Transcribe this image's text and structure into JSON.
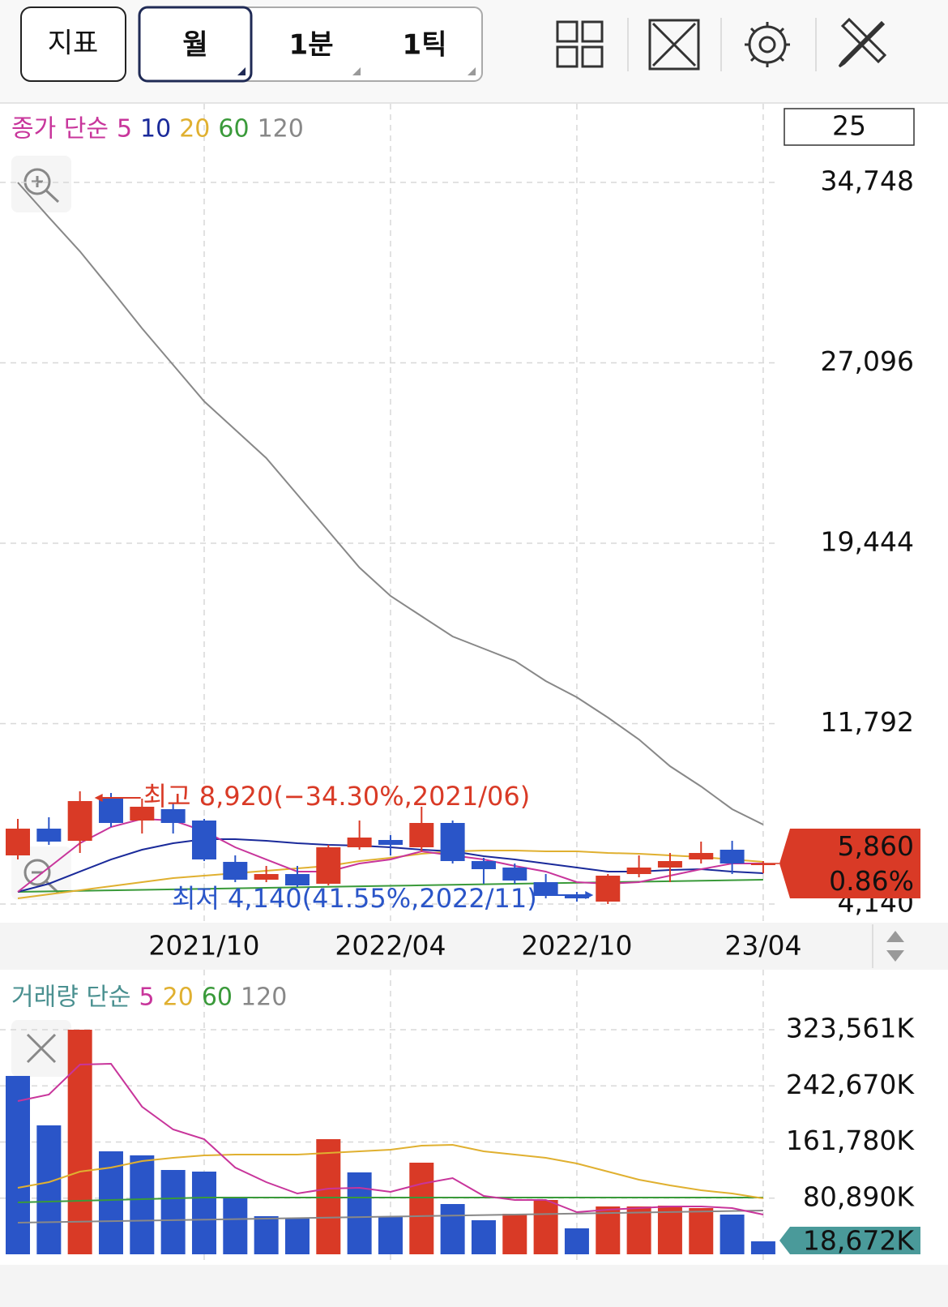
{
  "toolbar": {
    "indicator": "지표",
    "periods": [
      "월",
      "1분",
      "1틱"
    ]
  },
  "chart_data": [
    {
      "type": "candlestick",
      "legend_title": "종가 단순",
      "visible_count": 25,
      "categories": [
        null,
        null,
        null,
        null,
        null,
        null,
        "2021/10",
        null,
        null,
        null,
        null,
        null,
        "2022/04",
        null,
        null,
        null,
        null,
        null,
        "2022/10",
        null,
        null,
        null,
        null,
        null,
        "23/04"
      ],
      "open": [
        6203,
        7338,
        6822,
        8611,
        7682,
        8164,
        7682,
        5928,
        5172,
        5412,
        5000,
        6547,
        6857,
        6547,
        7579,
        5963,
        5688,
        5068,
        4553,
        4243,
        5412,
        5688,
        6031,
        6444,
        5811
      ],
      "high": [
        7751,
        7820,
        8920,
        8851,
        8611,
        8439,
        7751,
        6203,
        5756,
        5756,
        6650,
        7682,
        7063,
        8267,
        7682,
        6100,
        5859,
        5412,
        4656,
        5412,
        6203,
        6306,
        6788,
        6822,
        5963
      ],
      "low": [
        6031,
        6650,
        6306,
        7407,
        7132,
        7132,
        5963,
        5069,
        5069,
        4862,
        4931,
        6444,
        6203,
        6375,
        5859,
        4999,
        4999,
        4381,
        4243,
        4140,
        5275,
        5069,
        5859,
        5412,
        5447
      ],
      "close": [
        7338,
        6788,
        8508,
        7579,
        8267,
        7579,
        6031,
        5172,
        5412,
        4931,
        6547,
        6960,
        6650,
        7579,
        5963,
        5619,
        5137,
        4484,
        4381,
        5343,
        5688,
        5963,
        6306,
        5859,
        5860
      ],
      "up_color": "#d93a26",
      "down_color": "#2a55c8",
      "series": [
        {
          "name": "5",
          "color": "#c8359b",
          "values": [
            4656,
            5688,
            6719,
            7407,
            7751,
            7682,
            7235,
            6547,
            6031,
            5516,
            5516,
            5860,
            6031,
            6375,
            6203,
            6031,
            5756,
            5516,
            5069,
            5000,
            5069,
            5344,
            5619,
            5860,
            5860
          ]
        },
        {
          "name": "10",
          "color": "#1a2a9a",
          "values": [
            4656,
            5000,
            5516,
            6031,
            6444,
            6719,
            6891,
            6891,
            6822,
            6719,
            6650,
            6616,
            6547,
            6444,
            6375,
            6169,
            6031,
            5860,
            5688,
            5516,
            5516,
            5584,
            5619,
            5516,
            5447
          ]
        },
        {
          "name": "20",
          "color": "#e0b030",
          "values": [
            4381,
            4553,
            4725,
            4897,
            5069,
            5240,
            5344,
            5447,
            5550,
            5653,
            5756,
            5963,
            6100,
            6272,
            6375,
            6410,
            6410,
            6375,
            6375,
            6307,
            6272,
            6203,
            6135,
            6031,
            5928
          ]
        },
        {
          "name": "60",
          "color": "#3a9a3a",
          "values": [
            4656,
            4677,
            4699,
            4720,
            4742,
            4763,
            4785,
            4806,
            4828,
            4849,
            4871,
            4892,
            4914,
            4935,
            4957,
            4978,
            5000,
            5021,
            5043,
            5064,
            5086,
            5107,
            5129,
            5150,
            5172
          ]
        },
        {
          "name": "120",
          "color": "#888888",
          "values": [
            34747,
            33268,
            31824,
            30208,
            28557,
            27009,
            25462,
            24258,
            23055,
            21507,
            19959,
            18412,
            17208,
            16348,
            15489,
            14973,
            14457,
            13597,
            12909,
            12050,
            11121,
            9986,
            9127,
            8164,
            7510
          ]
        }
      ],
      "ylim": [
        4140,
        34748
      ],
      "yticks": [
        {
          "value": 34748,
          "label": "34,748"
        },
        {
          "value": 27096,
          "label": "27,096"
        },
        {
          "value": 19444,
          "label": "19,444"
        },
        {
          "value": 11792,
          "label": "11,792"
        },
        {
          "value": 4140,
          "label": "4,140"
        }
      ],
      "grid": true,
      "high_label": "최고 8,920(−34.30%,2021/06)",
      "low_label": "최저 4,140(41.55%,2022/11)",
      "last_label": "5,860",
      "change_label": "0.86%",
      "last_color": "#d93a26"
    },
    {
      "type": "bar",
      "legend_title": "거래량 단순",
      "values": [
        256966,
        185719,
        323561,
        148344,
        142502,
        121476,
        119140,
        82931,
        54898,
        52561,
        165862,
        117972,
        54898,
        131989,
        72420,
        49058,
        58402,
        78259,
        37378,
        68916,
        68916,
        70083,
        66579,
        57235,
        18672
      ],
      "bar_colors": [
        "#2a55c8",
        "#2a55c8",
        "#d93a26",
        "#2a55c8",
        "#2a55c8",
        "#2a55c8",
        "#2a55c8",
        "#2a55c8",
        "#2a55c8",
        "#2a55c8",
        "#d93a26",
        "#2a55c8",
        "#2a55c8",
        "#d93a26",
        "#2a55c8",
        "#2a55c8",
        "#d93a26",
        "#d93a26",
        "#2a55c8",
        "#d93a26",
        "#d93a26",
        "#d93a26",
        "#d93a26",
        "#2a55c8",
        "#2a55c8"
      ],
      "series": [
        {
          "name": "5",
          "color": "#c8359b",
          "values": [
            220752,
            230096,
            273312,
            274480,
            212576,
            179872,
            165856,
            124976,
            103952,
            87600,
            94608,
            95776,
            89936,
            101616,
            109792,
            84096,
            78256,
            78256,
            60736,
            64240,
            66576,
            68912,
            68912,
            66576,
            57232
          ]
        },
        {
          "name": "20",
          "color": "#e0b030",
          "values": [
            95776,
            103952,
            119136,
            124976,
            134320,
            138992,
            142496,
            143664,
            143664,
            143664,
            146000,
            148336,
            150672,
            156512,
            157680,
            148336,
            143664,
            138992,
            130816,
            119136,
            107456,
            99280,
            92272,
            87600,
            80592
          ]
        },
        {
          "name": "60",
          "color": "#3a9a3a",
          "values": [
            74752,
            75920,
            77088,
            78256,
            79424,
            80592,
            81760,
            81760,
            81760,
            81760,
            81760,
            81760,
            81760,
            81760,
            81760,
            81760,
            81760,
            81760,
            81760,
            81760,
            81760,
            81760,
            81760,
            81760,
            81760
          ]
        },
        {
          "name": "120",
          "color": "#888888",
          "values": [
            45552,
            46282,
            47012,
            47742,
            48472,
            49202,
            49932,
            50662,
            51392,
            52122,
            52852,
            53582,
            54312,
            55042,
            55772,
            56502,
            57232,
            57962,
            58692,
            59422,
            60152,
            60882,
            61612,
            62342,
            63072
          ]
        }
      ],
      "ylim": [
        0,
        323561
      ],
      "yticks": [
        {
          "value": 323561,
          "label": "323,561K"
        },
        {
          "value": 242670,
          "label": "242,670K"
        },
        {
          "value": 161780,
          "label": "161,780K"
        },
        {
          "value": 80890,
          "label": "80,890K"
        }
      ],
      "grid": true,
      "legend_color": "#4a9090",
      "last_label": "18,672K",
      "last_color": "#4a9a9a"
    }
  ]
}
